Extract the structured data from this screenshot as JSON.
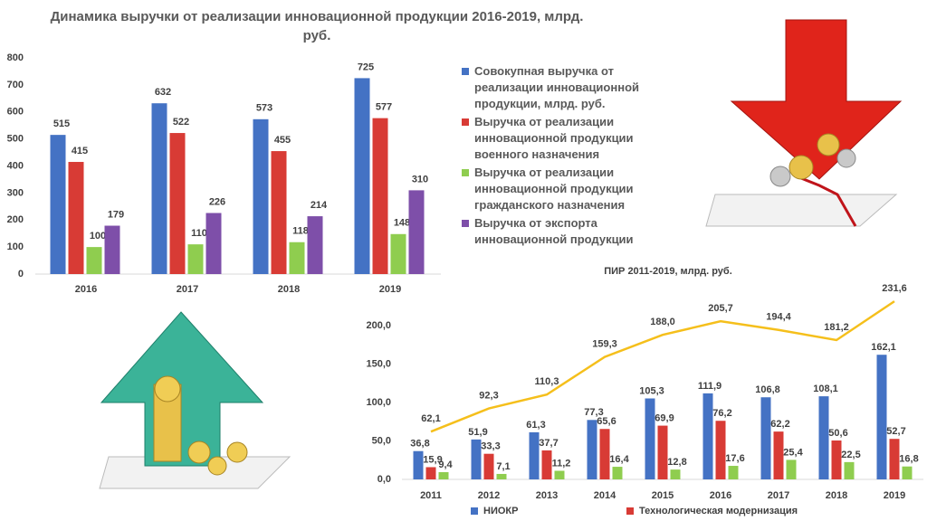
{
  "chart_data": [
    {
      "type": "bar",
      "title": "Динамика выручки от реализации инновационной продукции 2016-2019, млрд. руб.",
      "categories": [
        "2016",
        "2017",
        "2018",
        "2019"
      ],
      "series": [
        {
          "name": "Совокупная выручка от реализации инновационной продукции, млрд. руб.",
          "color": "#4472c4",
          "values": [
            515,
            632,
            573,
            725
          ]
        },
        {
          "name": "Выручка от реализации инновационной продукции военного назначения",
          "color": "#d83b35",
          "values": [
            415,
            522,
            455,
            577
          ]
        },
        {
          "name": "Выручка от реализации инновационной продукции гражданского назначения",
          "color": "#8fcd4f",
          "values": [
            100,
            110,
            118,
            148
          ]
        },
        {
          "name": "Выручка от экспорта инновационной продукции",
          "color": "#7e4fa9",
          "values": [
            179,
            226,
            214,
            310
          ]
        }
      ],
      "ylim": [
        0,
        800
      ],
      "yticks": [
        0,
        100,
        200,
        300,
        400,
        500,
        600,
        700,
        800
      ],
      "legend": "right"
    },
    {
      "type": "bar",
      "title": "ПИР 2011-2019, млрд. руб.",
      "categories": [
        "2011",
        "2012",
        "2013",
        "2014",
        "2015",
        "2016",
        "2017",
        "2018",
        "2019"
      ],
      "series": [
        {
          "name": "НИОКР",
          "color": "#4472c4",
          "type": "bar",
          "values": [
            36.8,
            51.9,
            61.3,
            77.3,
            105.3,
            111.9,
            106.8,
            108.1,
            162.1
          ],
          "value_labels": [
            "36,8",
            "51,9",
            "61,3",
            "77,3",
            "105,3",
            "111,9",
            "106,8",
            "108,1",
            "162,1"
          ]
        },
        {
          "name": "Технологическая модернизация",
          "color": "#d83b35",
          "type": "bar",
          "values": [
            15.9,
            33.3,
            37.7,
            65.6,
            69.9,
            76.2,
            62.2,
            50.6,
            52.7
          ],
          "value_labels": [
            "15,9",
            "33,3",
            "37,7",
            "65,6",
            "69,9",
            "76,2",
            "62,2",
            "50,6",
            "52,7"
          ]
        },
        {
          "color": "#8fcd4f",
          "type": "bar",
          "values": [
            9.4,
            7.1,
            11.2,
            16.4,
            12.8,
            17.6,
            25.4,
            22.5,
            16.8
          ],
          "value_labels": [
            "9,4",
            "7,1",
            "11,2",
            "16,4",
            "12,8",
            "17,6",
            "25,4",
            "22,5",
            "16,8"
          ]
        },
        {
          "color": "#f5bf1b",
          "type": "line",
          "values": [
            62.1,
            92.3,
            110.3,
            159.3,
            188.0,
            205.7,
            194.4,
            181.2,
            231.6
          ],
          "value_labels": [
            "62,1",
            "92,3",
            "110,3",
            "159,3",
            "188,0",
            "205,7",
            "194,4",
            "181,2",
            "231,6"
          ]
        }
      ],
      "ylim": [
        0,
        250
      ],
      "yticks": [
        {
          "value": 0,
          "label": "0,0"
        },
        {
          "value": 50,
          "label": "50,0"
        },
        {
          "value": 100,
          "label": "100,0"
        },
        {
          "value": 150,
          "label": "150,0"
        },
        {
          "value": 200,
          "label": "200,0"
        }
      ],
      "legend": "bottom"
    }
  ]
}
